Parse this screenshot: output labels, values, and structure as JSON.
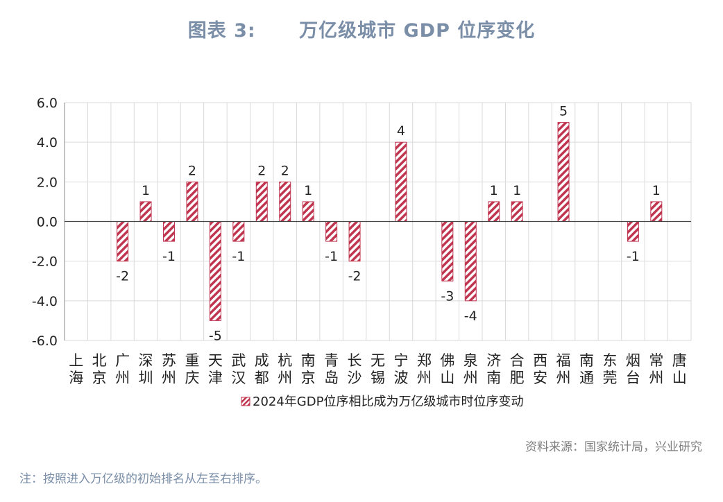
{
  "header": {
    "title": "图表 3:      万亿级城市 GDP 位序变化"
  },
  "chart_data": {
    "type": "bar",
    "categories": [
      "上海",
      "北京",
      "广州",
      "深圳",
      "苏州",
      "重庆",
      "天津",
      "武汉",
      "成都",
      "杭州",
      "南京",
      "青岛",
      "长沙",
      "无锡",
      "宁波",
      "郑州",
      "佛山",
      "泉州",
      "济南",
      "合肥",
      "西安",
      "福州",
      "南通",
      "东莞",
      "烟台",
      "常州",
      "唐山"
    ],
    "series": [
      {
        "name": "2024年GDP位序相比成为万亿级城市时位序变动",
        "values": [
          0,
          0,
          -2,
          1,
          -1,
          2,
          -5,
          -1,
          2,
          2,
          1,
          -1,
          -2,
          0,
          4,
          0,
          -3,
          -4,
          1,
          1,
          0,
          5,
          0,
          0,
          -1,
          1,
          0
        ]
      }
    ],
    "data_labels": [
      "",
      "",
      "-2",
      "1",
      "-1",
      "2",
      "-5",
      "-1",
      "2",
      "2",
      "1",
      "-1",
      "-2",
      "",
      "4",
      "",
      "-3",
      "-4",
      "1",
      "1",
      "",
      "5",
      "",
      "",
      "-1",
      "1",
      ""
    ],
    "y_ticks": [
      "6.0",
      "4.0",
      "2.0",
      "0.0",
      "-2.0",
      "-4.0",
      "-6.0"
    ],
    "ylim": [
      -6,
      6
    ],
    "grid": true,
    "legend": "bottom-center",
    "bar_color": "#c0354f"
  },
  "footer": {
    "source": "资料来源：国家统计局，兴业研究",
    "note": "注：按照进入万亿级的初始排名从左至右排序。"
  }
}
